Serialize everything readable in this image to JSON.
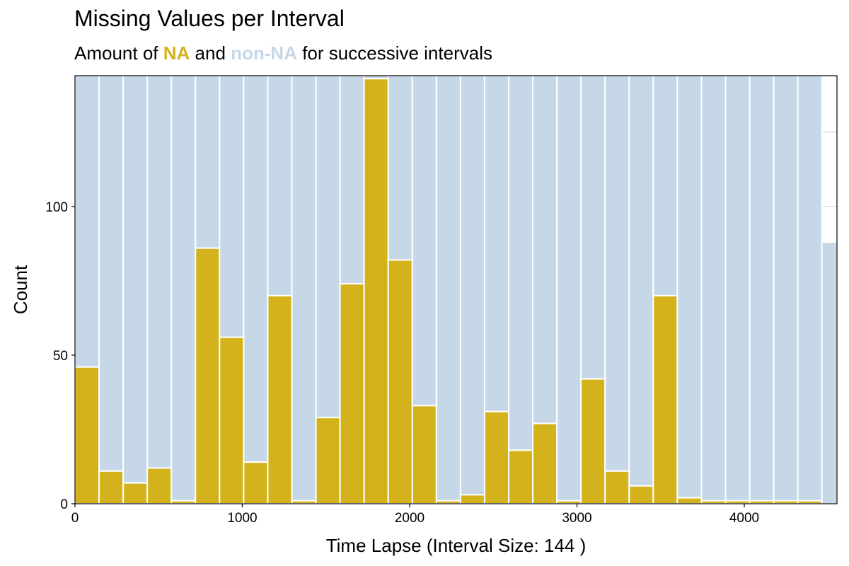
{
  "title": "Missing Values per Interval",
  "subtitle": {
    "prefix": "Amount of ",
    "na": "NA",
    "middle": " and ",
    "non_na": "non-NA",
    "suffix": " for successive intervals"
  },
  "colors": {
    "na": "#d4b21b",
    "non_na": "#c6d8e8",
    "bar_border": "#ffffff",
    "grid": "#b9c8d4",
    "panel_border": "#000000"
  },
  "chart_data": {
    "type": "bar",
    "stacked": true,
    "xlabel": "Time Lapse (Interval Size: 144 )",
    "ylabel": "Count",
    "interval_size": 144,
    "xlim": [
      0,
      4554
    ],
    "ylim": [
      0,
      144
    ],
    "x_ticks": [
      0,
      1000,
      2000,
      3000,
      4000
    ],
    "y_ticks": [
      0,
      50,
      100
    ],
    "grid": true,
    "intervals_start": [
      0,
      144,
      288,
      432,
      576,
      720,
      864,
      1008,
      1152,
      1296,
      1440,
      1584,
      1728,
      1872,
      2016,
      2160,
      2304,
      2448,
      2592,
      2736,
      2880,
      3024,
      3168,
      3312,
      3456,
      3600,
      3744,
      3888,
      4032,
      4176,
      4320,
      4464
    ],
    "series": [
      {
        "name": "NA",
        "values": [
          46,
          11,
          7,
          12,
          1,
          86,
          56,
          14,
          70,
          1,
          29,
          74,
          143,
          82,
          33,
          1,
          3,
          31,
          18,
          27,
          1,
          42,
          11,
          6,
          70,
          2,
          1,
          1,
          1,
          1,
          1,
          0
        ]
      },
      {
        "name": "non-NA",
        "values": [
          98,
          133,
          137,
          132,
          143,
          58,
          88,
          130,
          74,
          143,
          115,
          70,
          1,
          62,
          111,
          143,
          141,
          113,
          126,
          117,
          143,
          102,
          133,
          138,
          74,
          142,
          143,
          143,
          143,
          143,
          143,
          88
        ]
      }
    ]
  }
}
